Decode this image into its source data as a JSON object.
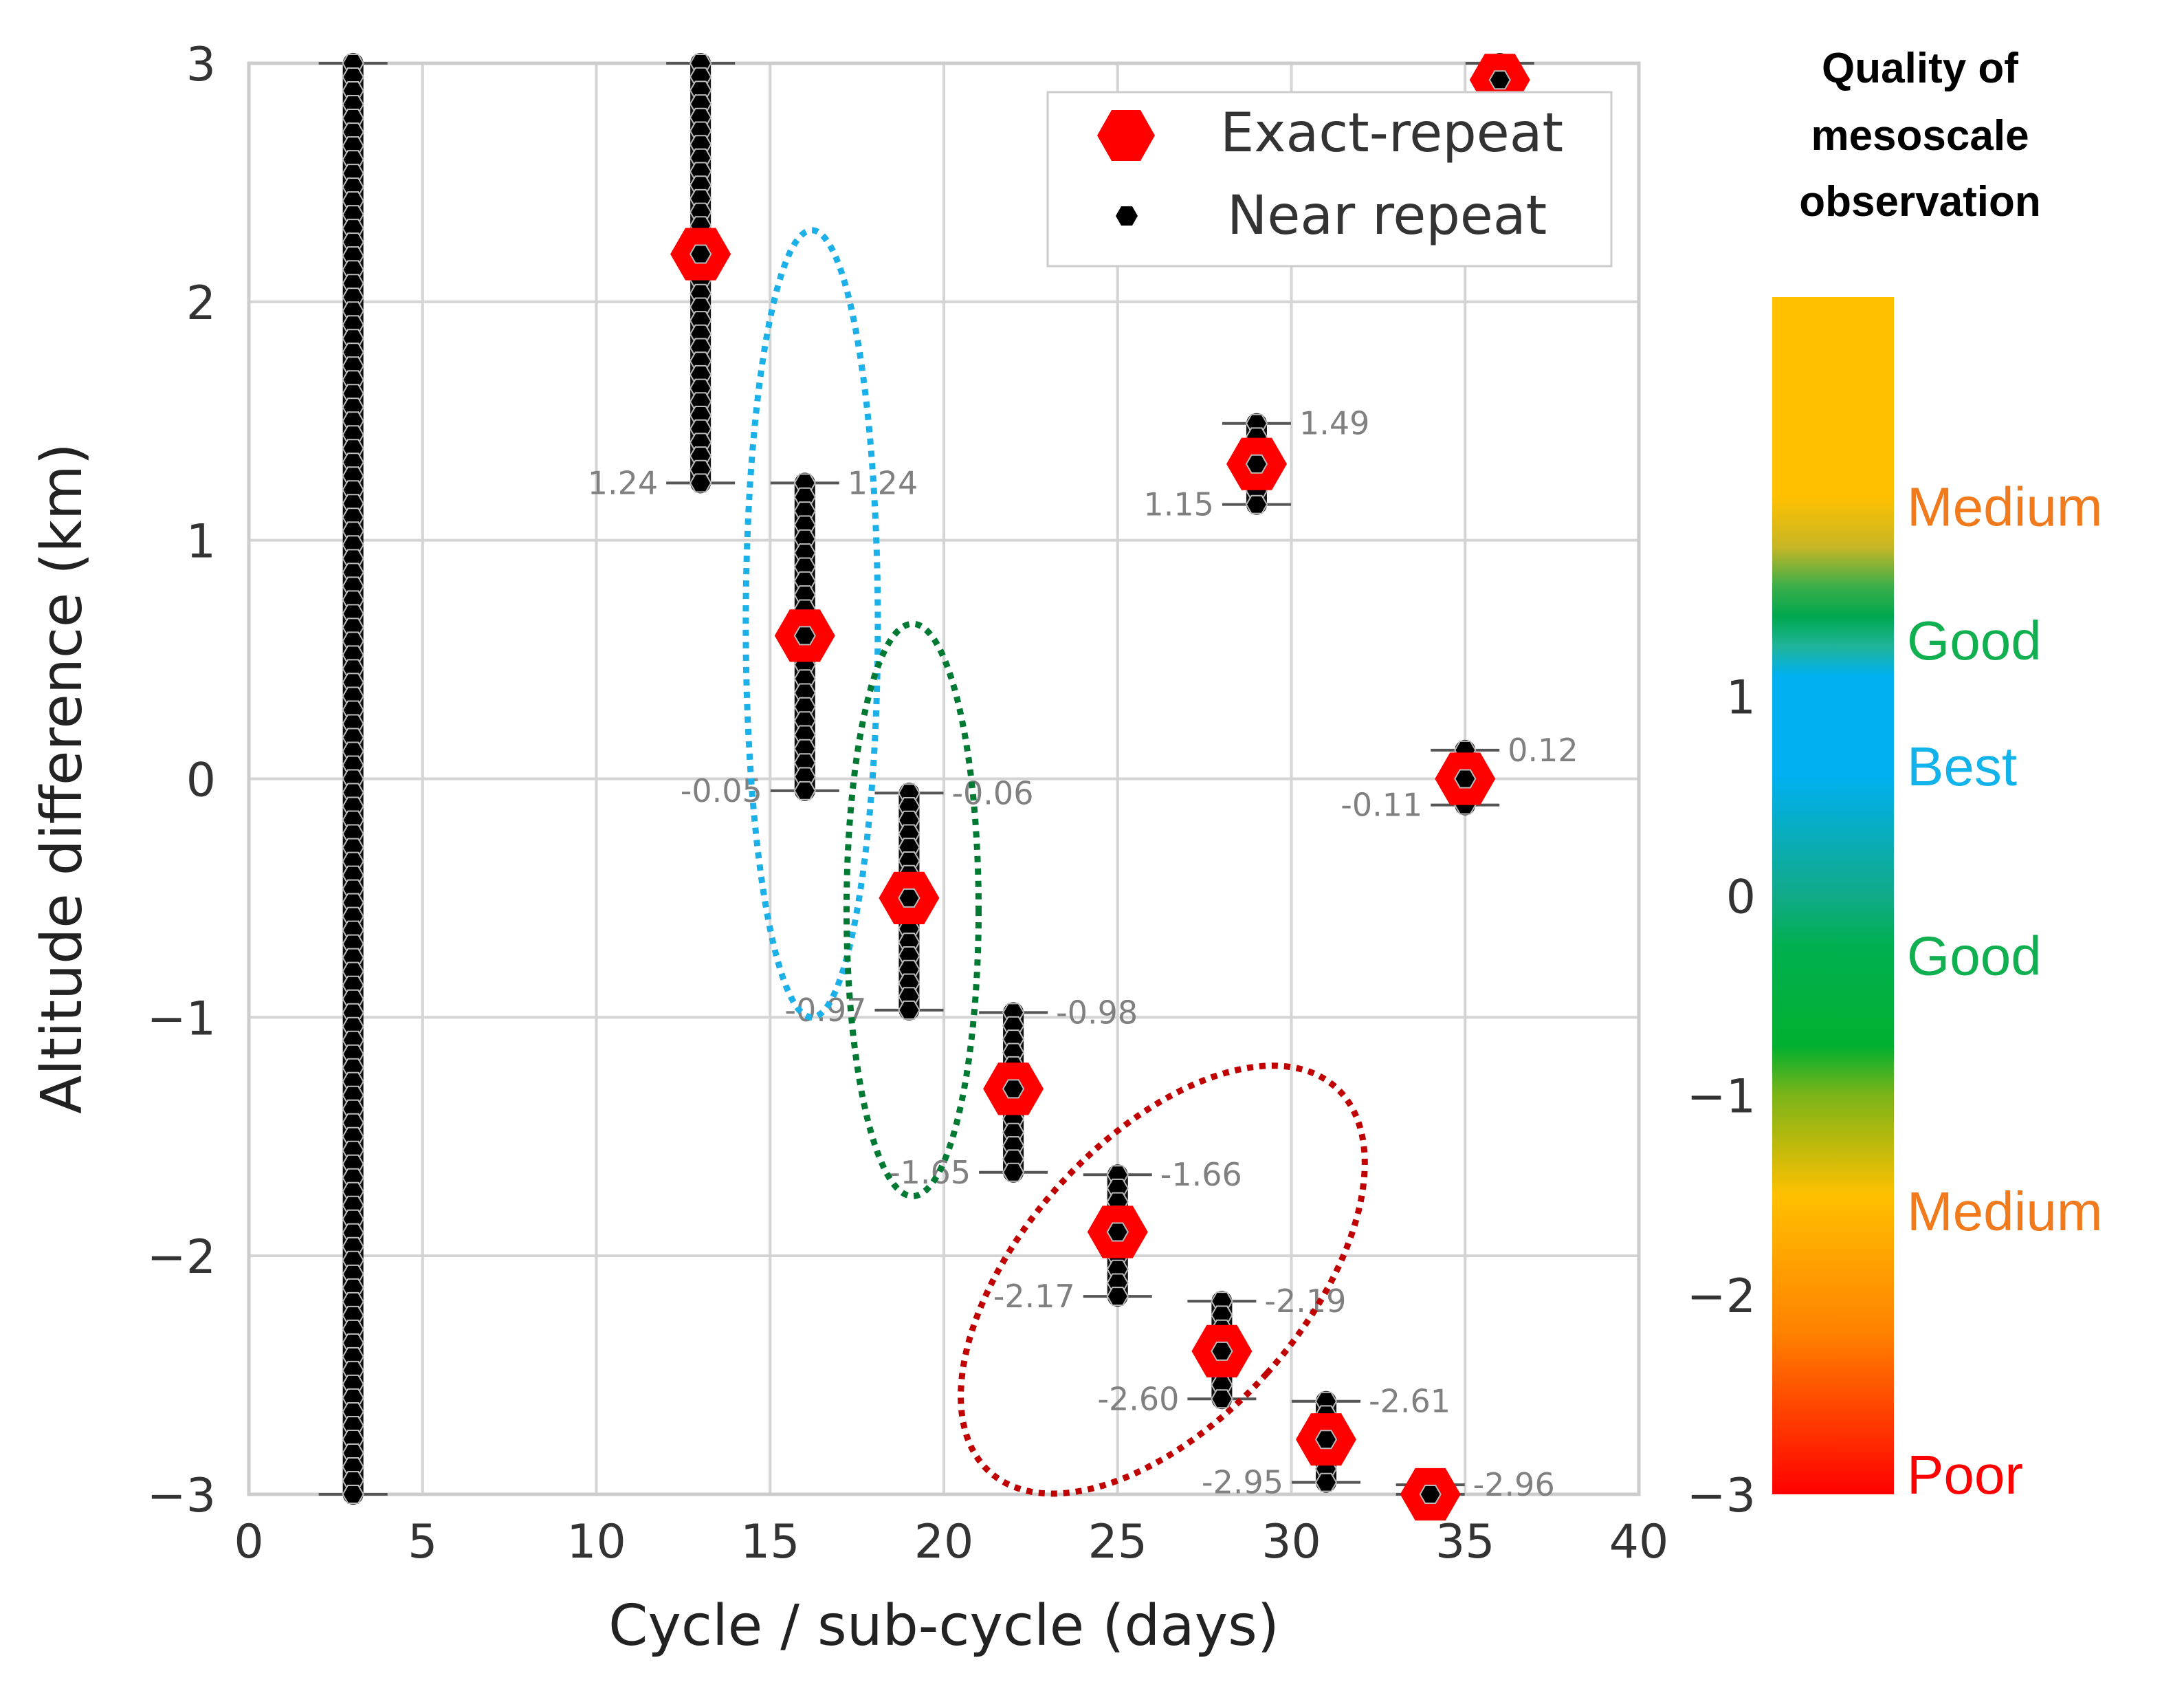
{
  "chart_data": {
    "type": "scatter",
    "xlabel": "Cycle / sub-cycle (days)",
    "ylabel": "Altitude difference (km)",
    "xlim": [
      0,
      40
    ],
    "ylim": [
      -3,
      3
    ],
    "x_ticks": [
      0,
      5,
      10,
      15,
      20,
      25,
      30,
      35,
      40
    ],
    "y_ticks": [
      -3,
      -2,
      -1,
      0,
      1,
      2,
      3
    ],
    "x_tick_labels": [
      "0",
      "5",
      "10",
      "15",
      "20",
      "25",
      "30",
      "35",
      "40"
    ],
    "y_tick_labels": [
      "−3",
      "−2",
      "−1",
      "0",
      "1",
      "2",
      "3"
    ],
    "grid": true,
    "legend": {
      "position": "top-right",
      "entries": [
        "Exact-repeat",
        "Near repeat"
      ]
    },
    "exact_repeat": [
      {
        "x": 13,
        "y": 2.2
      },
      {
        "x": 16,
        "y": 0.6
      },
      {
        "x": 19,
        "y": -0.5
      },
      {
        "x": 22,
        "y": -1.3
      },
      {
        "x": 25,
        "y": -1.9
      },
      {
        "x": 28,
        "y": -2.4
      },
      {
        "x": 29,
        "y": 1.32
      },
      {
        "x": 31,
        "y": -2.77
      },
      {
        "x": 34,
        "y": -3.0
      },
      {
        "x": 35,
        "y": 0.0
      },
      {
        "x": 36,
        "y": 2.93
      }
    ],
    "near_repeat_ranges": [
      {
        "x": 3,
        "ymin": -3.0,
        "ymax": 3.0
      },
      {
        "x": 13,
        "ymin": 1.24,
        "ymax": 3.0
      },
      {
        "x": 16,
        "ymin": -0.05,
        "ymax": 1.24
      },
      {
        "x": 19,
        "ymin": -0.97,
        "ymax": -0.06
      },
      {
        "x": 22,
        "ymin": -1.65,
        "ymax": -0.98
      },
      {
        "x": 25,
        "ymin": -2.17,
        "ymax": -1.66
      },
      {
        "x": 28,
        "ymin": -2.6,
        "ymax": -2.19
      },
      {
        "x": 29,
        "ymin": 1.15,
        "ymax": 1.49
      },
      {
        "x": 31,
        "ymin": -2.95,
        "ymax": -2.61
      },
      {
        "x": 34,
        "ymin": -3.0,
        "ymax": -2.96
      },
      {
        "x": 35,
        "ymin": -0.11,
        "ymax": 0.12
      },
      {
        "x": 36,
        "ymin": 2.85,
        "ymax": 3.0
      }
    ],
    "range_annotations": [
      {
        "x": 13,
        "y": 1.24,
        "text": "1.24",
        "side": "left"
      },
      {
        "x": 16,
        "y": 1.24,
        "text": "1.24",
        "side": "right"
      },
      {
        "x": 16,
        "y": -0.05,
        "text": "-0.05",
        "side": "left"
      },
      {
        "x": 19,
        "y": -0.06,
        "text": "-0.06",
        "side": "right"
      },
      {
        "x": 19,
        "y": -0.97,
        "text": "-0.97",
        "side": "left"
      },
      {
        "x": 22,
        "y": -0.98,
        "text": "-0.98",
        "side": "right"
      },
      {
        "x": 22,
        "y": -1.65,
        "text": "-1.65",
        "side": "left"
      },
      {
        "x": 25,
        "y": -1.66,
        "text": "-1.66",
        "side": "right"
      },
      {
        "x": 25,
        "y": -2.17,
        "text": "-2.17",
        "side": "left"
      },
      {
        "x": 28,
        "y": -2.19,
        "text": "-2.19",
        "side": "right"
      },
      {
        "x": 28,
        "y": -2.6,
        "text": "-2.60",
        "side": "left"
      },
      {
        "x": 29,
        "y": 1.49,
        "text": "1.49",
        "side": "right"
      },
      {
        "x": 29,
        "y": 1.15,
        "text": "1.15",
        "side": "left"
      },
      {
        "x": 31,
        "y": -2.61,
        "text": "-2.61",
        "side": "right"
      },
      {
        "x": 31,
        "y": -2.95,
        "text": "-2.95",
        "side": "left"
      },
      {
        "x": 34,
        "y": -2.96,
        "text": "-2.96",
        "side": "right"
      },
      {
        "x": 35,
        "y": 0.12,
        "text": "0.12",
        "side": "right"
      },
      {
        "x": 35,
        "y": -0.11,
        "text": "-0.11",
        "side": "left"
      }
    ],
    "highlight_regions": [
      {
        "name": "best",
        "color": "#1bb0e8",
        "center": [
          16.2,
          0.65
        ],
        "radius": [
          1.9,
          1.65
        ]
      },
      {
        "name": "good",
        "color": "#007a33",
        "center": [
          19.1,
          -0.55
        ],
        "radius": [
          1.9,
          1.2
        ]
      },
      {
        "name": "poor",
        "color": "#c00000",
        "center": [
          26.3,
          -2.1
        ],
        "radius": [
          6.5,
          1.75
        ],
        "rotate_deg": 42
      }
    ],
    "colorbar": {
      "title": [
        "Quality of",
        "mesoscale",
        "observation"
      ],
      "ylim": [
        -3,
        3
      ],
      "tick_values": [
        -3,
        -2,
        -1,
        0,
        1
      ],
      "tick_labels": [
        "−3",
        "−2",
        "−1",
        "0",
        "1"
      ],
      "quality_labels": [
        {
          "text": "Medium",
          "y": 1.95,
          "color": "#f07a1c"
        },
        {
          "text": "Good",
          "y": 1.28,
          "color": "#10b050"
        },
        {
          "text": "Best",
          "y": 0.65,
          "color": "#12b3ea"
        },
        {
          "text": "Good",
          "y": -0.3,
          "color": "#10b050"
        },
        {
          "text": "Medium",
          "y": -1.58,
          "color": "#f07a1c"
        },
        {
          "text": "Poor",
          "y": -2.9,
          "color": "#ff0000"
        }
      ],
      "gradient_stops": [
        {
          "y": 2.0,
          "color": "#ffc000"
        },
        {
          "y": 1.75,
          "color": "#c8b624"
        },
        {
          "y": 1.55,
          "color": "#3bae4a"
        },
        {
          "y": 1.4,
          "color": "#00a84f"
        },
        {
          "y": 1.25,
          "color": "#1fb49a"
        },
        {
          "y": 1.1,
          "color": "#00b0f0"
        },
        {
          "y": 0.6,
          "color": "#00b0f0"
        },
        {
          "y": 0.0,
          "color": "#11aa88"
        },
        {
          "y": -0.25,
          "color": "#00b050"
        },
        {
          "y": -0.75,
          "color": "#00b030"
        },
        {
          "y": -1.0,
          "color": "#7cb418"
        },
        {
          "y": -1.5,
          "color": "#ffc000"
        },
        {
          "y": -2.2,
          "color": "#ff8000"
        },
        {
          "y": -3.0,
          "color": "#ff0000"
        }
      ]
    }
  }
}
